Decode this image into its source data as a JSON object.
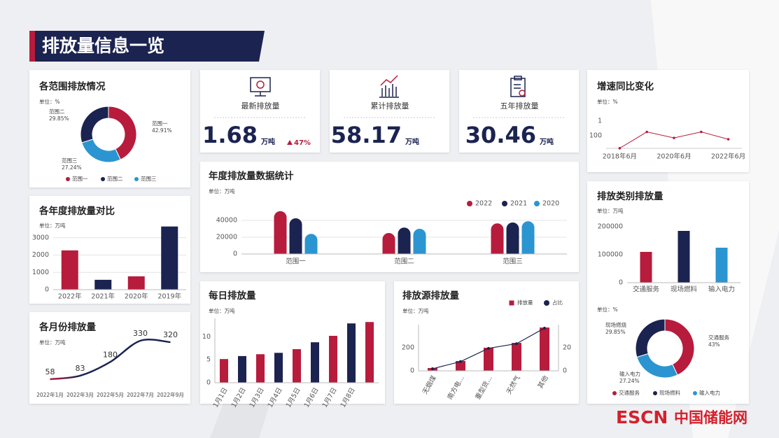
{
  "header": {
    "title": "排放量信息一览"
  },
  "kpis": [
    {
      "label": "最新排放量",
      "value": 1.68,
      "unit": "万吨",
      "change": "47%"
    },
    {
      "label": "累计排放量",
      "value": 58.17,
      "unit": "万吨"
    },
    {
      "label": "五年排放量",
      "value": 30.46,
      "unit": "万吨"
    }
  ],
  "logo": {
    "brand": "ESCN",
    "name": "中国储能网"
  },
  "chart_data": [
    {
      "type": "donut",
      "title": "各范围排放情况",
      "unit": "单位：%",
      "categories": [
        "范围一",
        "范围二",
        "范围三"
      ],
      "values": [
        42.91,
        29.85,
        27.24
      ],
      "value_labels": [
        "42.91%",
        "29.85%",
        "27.24%"
      ],
      "colors": [
        "#b71c3c",
        "#1b2350",
        "#2b95d1"
      ]
    },
    {
      "type": "bar",
      "title": "各年度排放量对比",
      "unit": "单位：万吨",
      "categories": [
        "2022年",
        "2021年",
        "2020年",
        "2019年"
      ],
      "values": [
        2270,
        570,
        770,
        3650
      ],
      "colors": [
        "#b71c3c",
        "#1b2350",
        "#b71c3c",
        "#1b2350"
      ],
      "ylim": [
        0,
        3800
      ],
      "yticks": [
        0,
        1000,
        2000,
        3000
      ],
      "grid": true
    },
    {
      "type": "line",
      "title": "各月份排放量",
      "unit": "单位：万吨",
      "categories": [
        "2022年1月",
        "2022年3月",
        "2022年5月",
        "2022年7月",
        "2022年9月"
      ],
      "values": [
        58,
        83,
        180,
        330,
        320
      ],
      "color": "#1b2350",
      "smooth": true,
      "data_labels": true
    },
    {
      "type": "grouped_bar",
      "title": "年度排放量数据统计",
      "unit": "单位：万吨",
      "categories": [
        "范围一",
        "范围二",
        "范围三"
      ],
      "series": [
        {
          "name": "2022",
          "color": "#b71c3c",
          "values": [
            51000,
            25000,
            36500
          ]
        },
        {
          "name": "2021",
          "color": "#1b2350",
          "values": [
            42500,
            31500,
            37500
          ]
        },
        {
          "name": "2020",
          "color": "#2b95d1",
          "values": [
            24000,
            30000,
            39000
          ]
        }
      ],
      "ylim": [
        0,
        55000
      ],
      "yticks": [
        0,
        20000,
        40000
      ],
      "grid": true,
      "legend": "top-right"
    },
    {
      "type": "bar",
      "title": "每日排放量",
      "unit": "单位：万吨",
      "categories": [
        "1月1日",
        "1月2日",
        "1月3日",
        "1月4日",
        "1月5日",
        "1月6日",
        "1月7日",
        "1月8日",
        null
      ],
      "values": [
        5.15,
        5.8,
        6.2,
        6.5,
        7.3,
        8.8,
        10.2,
        12.9,
        13.2
      ],
      "colors": [
        "#b71c3c",
        "#1b2350",
        "#b71c3c",
        "#1b2350",
        "#b71c3c",
        "#1b2350",
        "#b71c3c",
        "#1b2350",
        "#b71c3c"
      ],
      "ylim": [
        0,
        14
      ],
      "yticks": [
        0,
        5,
        10
      ],
      "rotate_labels": true
    },
    {
      "type": "bar_line",
      "title": "排放源排放量",
      "unit": "单位：万吨",
      "categories": [
        "无烟煤",
        "南方电...",
        "重型货...",
        "天然气",
        "其他"
      ],
      "series": [
        {
          "name": "排放量",
          "color": "#b71c3c",
          "values": [
            24,
            85,
            200,
            242,
            375
          ]
        },
        {
          "name": "占比",
          "color": "#1b2350",
          "values": [
            1.8,
            8,
            19.5,
            23.5,
            37
          ],
          "axis": "y2"
        }
      ],
      "ylim": [
        0,
        400
      ],
      "yticks": [
        0,
        200
      ],
      "y2lim": [
        0,
        40
      ],
      "y2ticks": [
        0,
        20
      ],
      "rotate_labels": true,
      "legend": "top-right"
    },
    {
      "type": "line",
      "title": "增速同比变化",
      "unit": "单位：%",
      "categories": [
        "2018年6月",
        null,
        "2020年6月",
        null,
        "2022年6月"
      ],
      "values": [
        5000,
        30,
        200,
        30,
        300
      ],
      "color": "#b71c3c",
      "ylim": [
        1,
        10000
      ],
      "yticks": [
        1,
        100
      ],
      "log_scale": true,
      "y_inverted": true
    },
    {
      "type": "bar",
      "title": "排放类别排放量",
      "unit": "单位：万吨",
      "categories": [
        "交通服务",
        "现场燃料",
        "输入电力"
      ],
      "values": [
        110000,
        185000,
        125000
      ],
      "colors": [
        "#b71c3c",
        "#1b2350",
        "#2b95d1"
      ],
      "ylim": [
        0,
        220000
      ],
      "yticks": [
        0,
        100000,
        200000
      ]
    },
    {
      "type": "donut",
      "unit": "单位：%",
      "categories": [
        "交通服务",
        "现场燃料",
        "输入电力"
      ],
      "slice_labels": [
        "交通服务",
        "现场燃烧",
        "输入电力"
      ],
      "values": [
        43,
        29.85,
        27.24
      ],
      "value_labels": [
        "43%",
        "29.85%",
        "27.24%"
      ],
      "colors": [
        "#b71c3c",
        "#1b2350",
        "#2b95d1"
      ]
    }
  ]
}
